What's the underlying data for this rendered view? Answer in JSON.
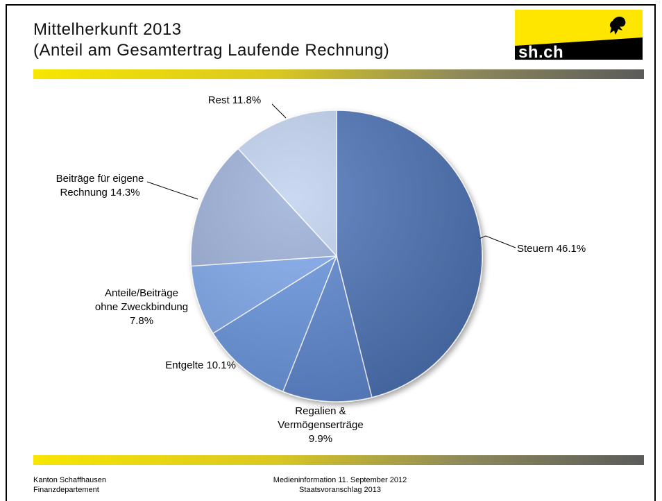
{
  "header": {
    "title_line1": "Mittelherkunft 2013",
    "title_line2": "(Anteil am Gesamtertrag Laufende Rechnung)"
  },
  "logo": {
    "text": "sh.ch",
    "colors": {
      "yellow": "#ffe600",
      "black": "#000000"
    }
  },
  "chart_data": {
    "type": "pie",
    "title": "",
    "start_angle_deg": 0,
    "direction": "clockwise",
    "slices": [
      {
        "label_lines": [
          "Steuern 46.1%"
        ],
        "value": 46.1,
        "color": "#4a6fb5"
      },
      {
        "label_lines": [
          "Regalien &",
          "Vermögenserträge",
          "9.9%"
        ],
        "value": 9.9,
        "color": "#5a85d0"
      },
      {
        "label_lines": [
          "Entgelte 10.1%"
        ],
        "value": 10.1,
        "color": "#6695df"
      },
      {
        "label_lines": [
          "Anteile/Beiträge",
          "ohne Zweckbindung",
          "7.8%"
        ],
        "value": 7.8,
        "color": "#7ba6ec"
      },
      {
        "label_lines": [
          "Beiträge für eigene",
          "Rechnung 14.3%"
        ],
        "value": 14.3,
        "color": "#99aed8"
      },
      {
        "label_lines": [
          "Rest 11.8%"
        ],
        "value": 11.8,
        "color": "#bfd0ee"
      }
    ],
    "legend": "none"
  },
  "footer": {
    "org_line1": "Kanton Schaffhausen",
    "org_line2": "Finanzdepartement",
    "info_line1": "Medieninformation 11. September 2012",
    "info_line2": "Staatsvoranschlag 2013"
  }
}
